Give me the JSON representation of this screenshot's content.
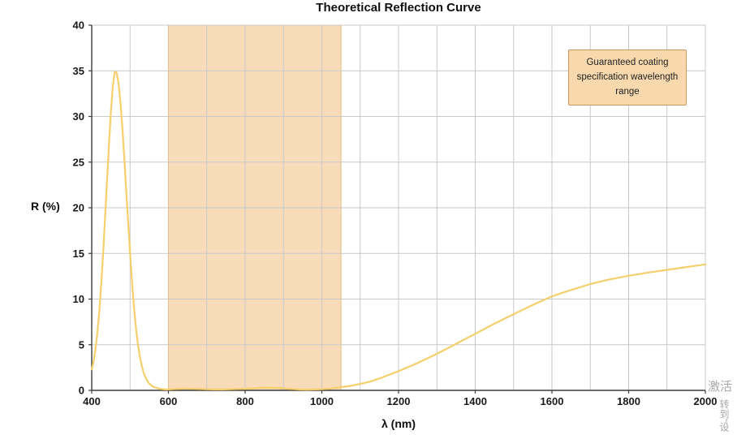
{
  "title": "Theoretical Reflection Curve",
  "axes": {
    "x_label": "λ (nm)",
    "y_label": "R (%)"
  },
  "legend": {
    "text": "Guaranteed coating specification wavelength range"
  },
  "watermark": {
    "line1": "激活",
    "line2": "转到“设"
  },
  "colors": {
    "curve": "#f4cf6b",
    "band_fill": "#f8dcba",
    "band_edge": "#e3bd8c",
    "grid": "#c9c9c9",
    "axis": "#3c3c3c",
    "tick_text": "#1a1a1a"
  },
  "chart_data": {
    "type": "line",
    "title": "Theoretical Reflection Curve",
    "xlabel": "λ (nm)",
    "ylabel": "R (%)",
    "xlim": [
      400,
      2000
    ],
    "ylim": [
      0,
      40
    ],
    "x_major_ticks": [
      400,
      600,
      800,
      1000,
      1200,
      1400,
      1600,
      1800,
      2000
    ],
    "x_minor_step": 100,
    "y_ticks": [
      0,
      5,
      10,
      15,
      20,
      25,
      30,
      35,
      40
    ],
    "grid": true,
    "legend_position": "top-right",
    "shaded_region": {
      "x_start": 600,
      "x_end": 1050,
      "label": "Guaranteed coating specification wavelength range"
    },
    "series": [
      {
        "name": "Theoretical reflection curve",
        "x": [
          400,
          405,
          410,
          415,
          420,
          425,
          430,
          435,
          440,
          445,
          450,
          455,
          460,
          465,
          470,
          475,
          480,
          485,
          490,
          495,
          500,
          505,
          510,
          515,
          520,
          525,
          530,
          535,
          540,
          545,
          550,
          560,
          570,
          580,
          590,
          600,
          620,
          640,
          660,
          680,
          700,
          720,
          740,
          760,
          780,
          800,
          820,
          840,
          860,
          880,
          900,
          920,
          940,
          960,
          980,
          1000,
          1020,
          1040,
          1050,
          1075,
          1100,
          1125,
          1150,
          1175,
          1200,
          1250,
          1300,
          1350,
          1400,
          1450,
          1500,
          1550,
          1600,
          1650,
          1700,
          1750,
          1800,
          1850,
          1900,
          1950,
          2000
        ],
        "y": [
          2.3,
          3.2,
          4.6,
          6.4,
          8.8,
          11.8,
          15.2,
          19.0,
          23.0,
          27.0,
          30.5,
          33.3,
          34.9,
          34.8,
          33.6,
          31.5,
          28.7,
          25.4,
          21.9,
          18.4,
          15.0,
          11.9,
          9.2,
          7.0,
          5.2,
          3.8,
          2.8,
          2.0,
          1.45,
          1.05,
          0.75,
          0.4,
          0.25,
          0.15,
          0.1,
          0.1,
          0.15,
          0.2,
          0.2,
          0.15,
          0.12,
          0.1,
          0.1,
          0.12,
          0.15,
          0.18,
          0.22,
          0.28,
          0.3,
          0.28,
          0.22,
          0.15,
          0.1,
          0.08,
          0.1,
          0.12,
          0.2,
          0.3,
          0.35,
          0.5,
          0.7,
          0.95,
          1.3,
          1.7,
          2.1,
          3.0,
          4.0,
          5.1,
          6.2,
          7.3,
          8.35,
          9.35,
          10.3,
          11.0,
          11.65,
          12.15,
          12.55,
          12.9,
          13.2,
          13.5,
          13.8
        ]
      }
    ]
  }
}
